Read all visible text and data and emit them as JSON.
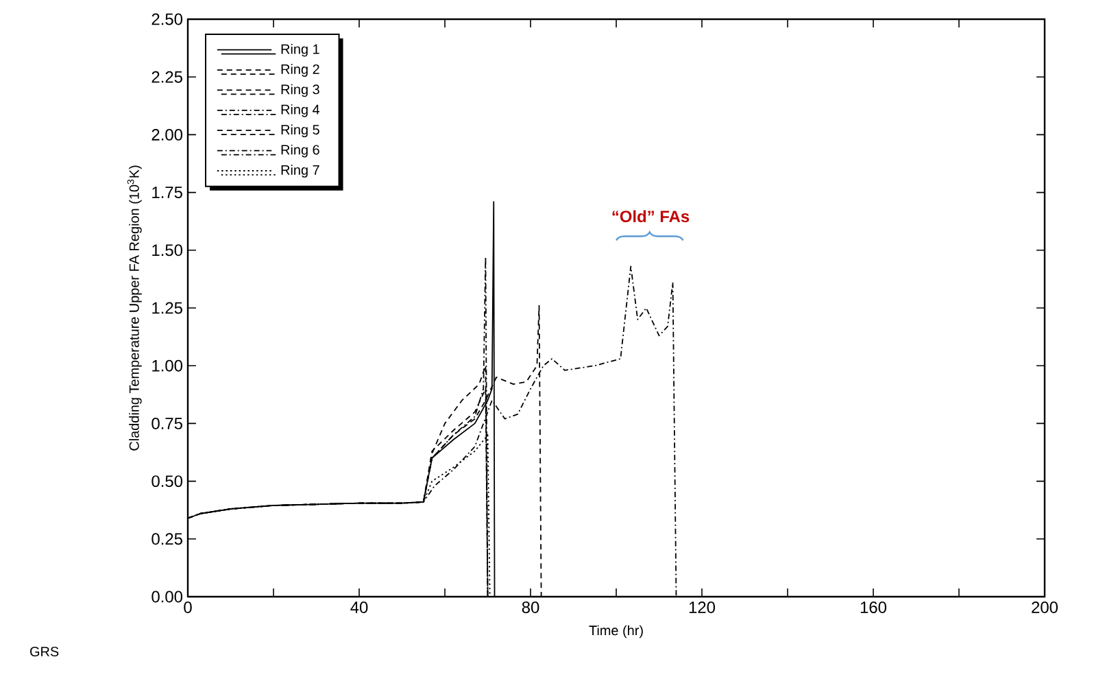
{
  "chart_data": {
    "type": "line",
    "xlabel": "Time (hr)",
    "ylabel": "Cladding Temperature Upper FA Region (10$^{3}$K)",
    "xlim": [
      0,
      200
    ],
    "ylim": [
      0,
      2.5
    ],
    "xticks": [
      0,
      {
        "value": 20,
        "label": null
      },
      40,
      {
        "value": 60,
        "label": null
      },
      80,
      {
        "value": 100,
        "label": null
      },
      120,
      {
        "value": 140,
        "label": null
      },
      160,
      {
        "value": 180,
        "label": null
      },
      200
    ],
    "yticks": [
      {
        "value": 0,
        "label": "0.00"
      },
      {
        "value": 0.25,
        "label": "0.25"
      },
      {
        "value": 0.5,
        "label": "0.50"
      },
      {
        "value": 0.75,
        "label": "0.75"
      },
      {
        "value": 1,
        "label": "1.00"
      },
      {
        "value": 1.25,
        "label": "1.25"
      },
      {
        "value": 1.5,
        "label": "1.50"
      },
      {
        "value": 1.75,
        "label": "1.75"
      },
      {
        "value": 2,
        "label": "2.00"
      },
      {
        "value": 2.25,
        "label": "2.25"
      },
      {
        "value": 2.5,
        "label": "2.50"
      }
    ],
    "legend": "top left",
    "grid": false,
    "annotations": [
      "“Old” FAs",
      "GRS"
    ],
    "series": [
      {
        "name": "Ring 1",
        "color": "#000000",
        "line_style": "solid",
        "x": [
          0,
          3,
          10,
          20,
          30,
          40,
          50,
          55,
          57,
          62,
          67,
          70,
          71,
          71.4,
          71.6,
          200
        ],
        "values": [
          0.34,
          0.36,
          0.38,
          0.395,
          0.4,
          0.405,
          0.405,
          0.41,
          0.6,
          0.68,
          0.75,
          0.85,
          0.9,
          1.71,
          0,
          0
        ]
      },
      {
        "name": "Ring 2",
        "color": "#000000",
        "line_style": "dashed",
        "x": [
          0,
          3,
          10,
          20,
          30,
          40,
          50,
          55,
          57,
          62,
          67,
          69.5,
          70,
          200
        ],
        "values": [
          0.34,
          0.36,
          0.38,
          0.395,
          0.4,
          0.405,
          0.405,
          0.41,
          0.63,
          0.72,
          0.8,
          0.9,
          0,
          0
        ]
      },
      {
        "name": "Ring 3",
        "color": "#000000",
        "line_style": "dashed",
        "x": [
          0,
          3,
          10,
          20,
          30,
          40,
          50,
          55,
          57,
          60,
          64,
          68,
          69.5,
          70,
          200
        ],
        "values": [
          0.34,
          0.36,
          0.38,
          0.395,
          0.4,
          0.405,
          0.405,
          0.41,
          0.62,
          0.75,
          0.85,
          0.92,
          1.0,
          0,
          0
        ]
      },
      {
        "name": "Ring 4",
        "color": "#000000",
        "line_style": "dashdot",
        "x": [
          0,
          3,
          10,
          20,
          30,
          40,
          50,
          55,
          57,
          62,
          67,
          69,
          69.5,
          70,
          200
        ],
        "values": [
          0.34,
          0.36,
          0.38,
          0.395,
          0.4,
          0.405,
          0.405,
          0.41,
          0.6,
          0.7,
          0.78,
          0.9,
          1.47,
          0,
          0
        ]
      },
      {
        "name": "Ring 5",
        "color": "#000000",
        "line_style": "dashed",
        "x": [
          0,
          3,
          10,
          20,
          30,
          40,
          50,
          55,
          57,
          62,
          67,
          69.5,
          72,
          76,
          79,
          81.5,
          82,
          82.5,
          200
        ],
        "values": [
          0.34,
          0.36,
          0.38,
          0.395,
          0.4,
          0.405,
          0.405,
          0.41,
          0.6,
          0.7,
          0.77,
          0.85,
          0.95,
          0.92,
          0.93,
          1.0,
          1.26,
          0,
          0
        ]
      },
      {
        "name": "Ring 6",
        "color": "#000000",
        "line_style": "dashdot",
        "x": [
          0,
          3,
          10,
          20,
          30,
          40,
          50,
          55,
          57.6,
          62,
          67,
          70,
          71,
          74,
          77,
          80,
          83,
          85,
          88,
          95,
          101,
          103.4,
          105,
          107,
          110,
          112,
          113.2,
          114,
          200
        ],
        "values": [
          0.34,
          0.36,
          0.38,
          0.395,
          0.4,
          0.405,
          0.405,
          0.41,
          0.48,
          0.55,
          0.65,
          0.8,
          0.85,
          0.77,
          0.79,
          0.9,
          1.0,
          1.03,
          0.98,
          1.0,
          1.03,
          1.43,
          1.2,
          1.25,
          1.13,
          1.17,
          1.36,
          0,
          0
        ]
      },
      {
        "name": "Ring 7",
        "color": "#000000",
        "line_style": "dotted",
        "x": [
          0,
          3,
          10,
          20,
          30,
          40,
          50,
          55,
          57,
          62,
          67,
          70,
          70.5,
          200
        ],
        "values": [
          0.34,
          0.36,
          0.38,
          0.395,
          0.4,
          0.405,
          0.405,
          0.41,
          0.5,
          0.56,
          0.63,
          0.7,
          0,
          0
        ]
      }
    ]
  }
}
